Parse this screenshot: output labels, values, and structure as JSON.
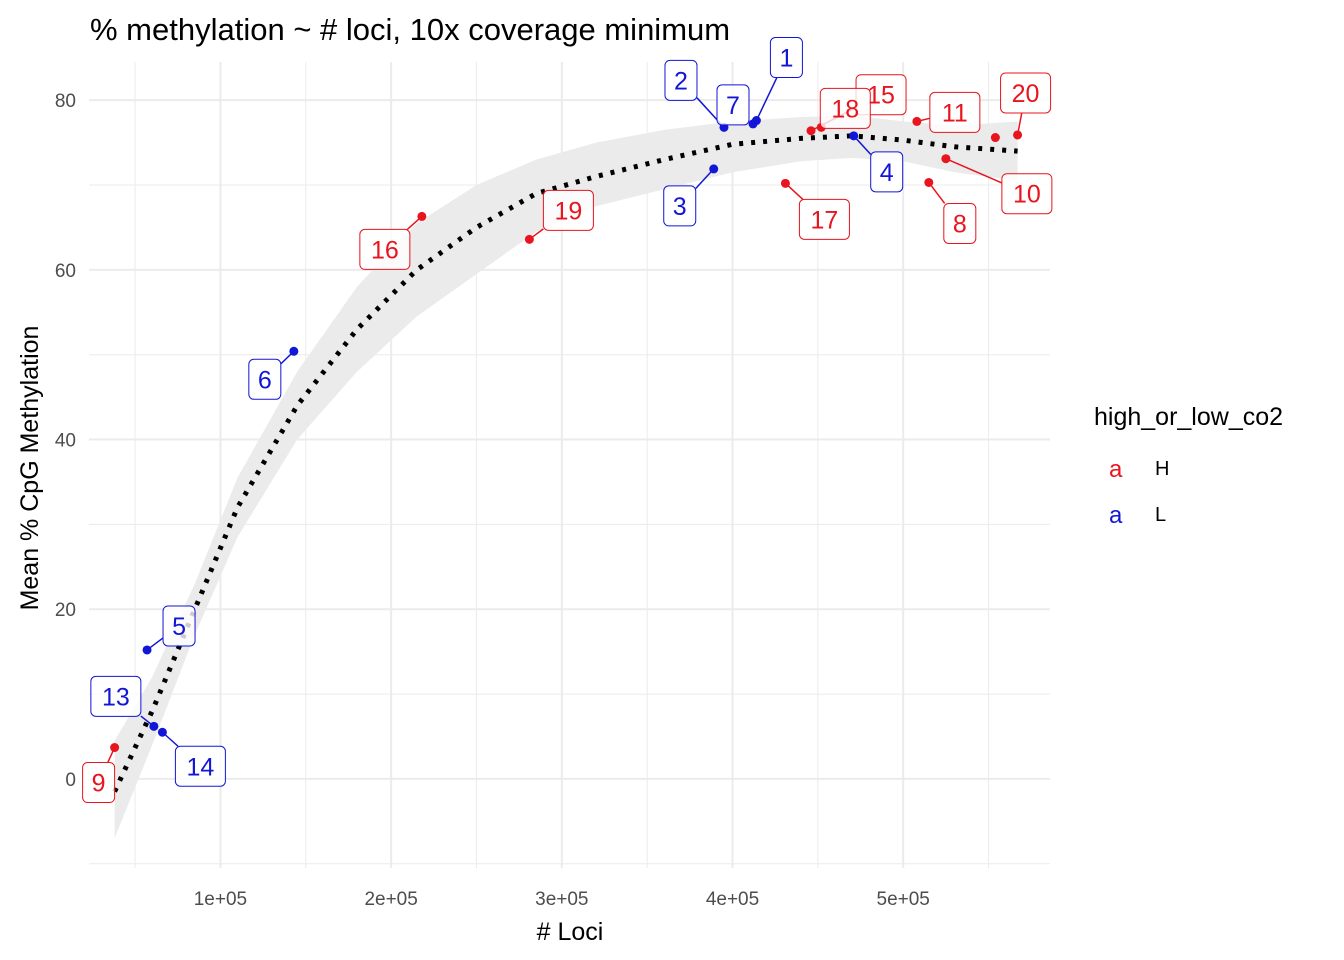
{
  "colors": {
    "H": "#e8141e",
    "L": "#1216d6",
    "smooth": "#000000",
    "band": "#ebebeb",
    "grid": "#ebebeb"
  },
  "chart_data": {
    "type": "scatter",
    "title": "% methylation ~ # loci, 10x coverage minimum",
    "xlabel": "# Loci",
    "ylabel": "Mean % CpG Methylation",
    "xlim": [
      23000,
      586000
    ],
    "ylim": [
      -10.5,
      84.5
    ],
    "x_ticks": [
      100000,
      200000,
      300000,
      400000,
      500000
    ],
    "x_tick_labels": [
      "1e+05",
      "2e+05",
      "3e+05",
      "4e+05",
      "5e+05"
    ],
    "y_ticks": [
      0,
      20,
      40,
      60,
      80
    ],
    "y_tick_labels": [
      "0",
      "20",
      "40",
      "60",
      "80"
    ],
    "grid": true,
    "legend": {
      "title": "high_or_low_co2",
      "position": "right",
      "key_glyph": "a",
      "entries": [
        {
          "key": "H",
          "label": "H"
        },
        {
          "key": "L",
          "label": "L"
        }
      ]
    },
    "points": [
      {
        "label": "1",
        "group": "L",
        "x": 414000,
        "y": 77.6
      },
      {
        "label": "2",
        "group": "L",
        "x": 395000,
        "y": 76.8
      },
      {
        "label": "3",
        "group": "L",
        "x": 389000,
        "y": 71.9
      },
      {
        "label": "4",
        "group": "L",
        "x": 471000,
        "y": 75.8
      },
      {
        "label": "5",
        "group": "L",
        "x": 57000,
        "y": 15.2
      },
      {
        "label": "6",
        "group": "L",
        "x": 143000,
        "y": 50.4
      },
      {
        "label": "7",
        "group": "L",
        "x": 412000,
        "y": 77.2
      },
      {
        "label": "8",
        "group": "H",
        "x": 515000,
        "y": 70.3
      },
      {
        "label": "9",
        "group": "H",
        "x": 38000,
        "y": 3.7
      },
      {
        "label": "10",
        "group": "H",
        "x": 525000,
        "y": 73.1
      },
      {
        "label": "11",
        "group": "H",
        "x": 508000,
        "y": 77.5
      },
      {
        "label": "13",
        "group": "L",
        "x": 61000,
        "y": 6.2
      },
      {
        "label": "14",
        "group": "L",
        "x": 66000,
        "y": 5.5
      },
      {
        "label": "15",
        "group": "H",
        "x": 446000,
        "y": 76.4
      },
      {
        "label": "16",
        "group": "H",
        "x": 218000,
        "y": 66.3
      },
      {
        "label": "17",
        "group": "H",
        "x": 431000,
        "y": 70.2
      },
      {
        "label": "18",
        "group": "H",
        "x": 452000,
        "y": 76.8
      },
      {
        "label": "19",
        "group": "H",
        "x": 281000,
        "y": 63.6
      },
      {
        "label": "20",
        "group": "H",
        "x": 567000,
        "y": 75.9
      },
      {
        "label": "",
        "group": "H",
        "x": 554000,
        "y": 75.6
      }
    ],
    "smooth": {
      "method": "loess",
      "line_style": "dotted",
      "x": [
        38000,
        60000,
        85000,
        110000,
        145000,
        180000,
        215000,
        250000,
        285000,
        320000,
        360000,
        400000,
        440000,
        470000,
        500000,
        530000,
        567000
      ],
      "y": [
        -1.5,
        8,
        20,
        32,
        44,
        53,
        60,
        65,
        69,
        71,
        73,
        74.8,
        75.5,
        75.8,
        75.3,
        74.5,
        74
      ],
      "ci_upper": [
        4.5,
        12,
        23,
        35.5,
        48,
        58,
        65.5,
        70,
        73,
        75,
        76.5,
        77.5,
        78,
        78.2,
        77.5,
        77,
        77.5
      ],
      "ci_lower": [
        -7,
        4,
        17,
        28.5,
        40,
        48,
        54.5,
        59.5,
        64.5,
        67.5,
        69.5,
        71.5,
        72.8,
        73.2,
        72.8,
        71.5,
        70.5
      ]
    }
  }
}
